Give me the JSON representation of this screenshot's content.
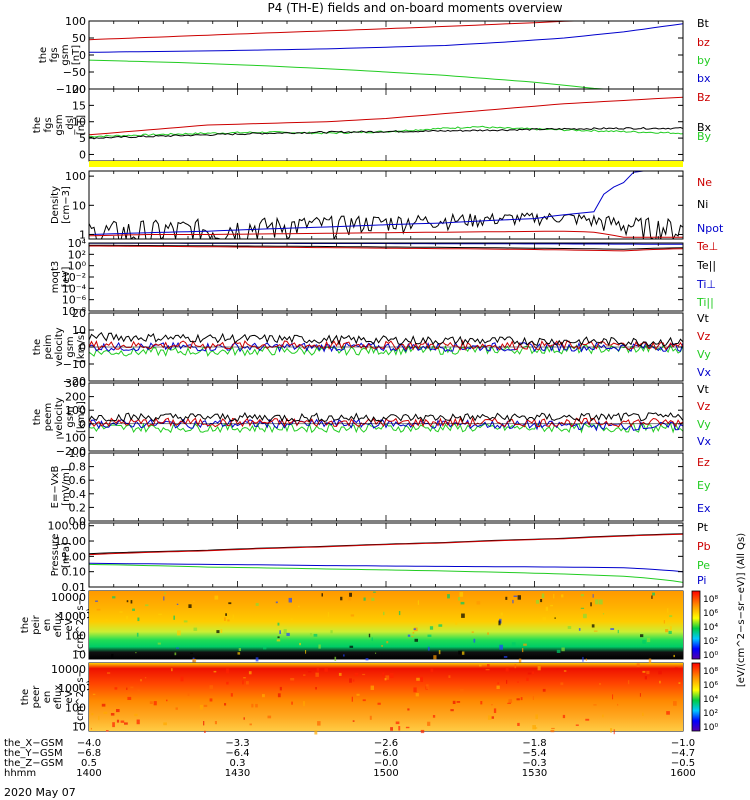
{
  "title": "P4 (TH-E) fields and on-board moments overview",
  "chart_data": [
    {
      "type": "line",
      "ylabel": [
        "the",
        "fgs",
        "gsm",
        "[nT]"
      ],
      "ylim": [
        -100,
        100
      ],
      "yticks": [
        "100",
        "50",
        "0",
        "−50",
        "−100"
      ],
      "tickvals": [
        100,
        50,
        0,
        -50,
        -100
      ],
      "legend": [
        {
          "label": "Bt",
          "color": "#000000"
        },
        {
          "label": "bz",
          "color": "#cc0000"
        },
        {
          "label": "by",
          "color": "#22cc22"
        },
        {
          "label": "bx",
          "color": "#0000cc"
        }
      ],
      "series": [
        {
          "name": "bz",
          "color": "#cc0000",
          "x": [
            0,
            15,
            30,
            45,
            60,
            75,
            81,
            100
          ],
          "y": [
            45,
            55,
            65,
            74,
            84,
            95,
            100,
            100
          ]
        },
        {
          "name": "bx",
          "color": "#0000cc",
          "x": [
            0,
            20,
            40,
            60,
            70,
            80,
            90,
            100
          ],
          "y": [
            8,
            12,
            18,
            28,
            38,
            50,
            68,
            92
          ]
        },
        {
          "name": "by",
          "color": "#22cc22",
          "x": [
            0,
            15,
            30,
            45,
            60,
            75,
            86,
            100
          ],
          "y": [
            -15,
            -22,
            -32,
            -45,
            -60,
            -80,
            -100,
            -100
          ]
        }
      ]
    },
    {
      "type": "line",
      "ylabel": [
        "the",
        "fgs",
        "gsm",
        "_dsl",
        "[nT]"
      ],
      "ylim": [
        -2,
        20
      ],
      "yticks": [
        "20",
        "15",
        "10",
        "5",
        "0"
      ],
      "tickvals": [
        20,
        15,
        10,
        5,
        0
      ],
      "legend": [
        {
          "label": "Bz",
          "color": "#cc0000"
        },
        {
          "label": "Bx",
          "color": "#000000"
        },
        {
          "label": "By",
          "color": "#22cc22"
        }
      ],
      "series": [
        {
          "name": "Bz",
          "color": "#cc0000",
          "x": [
            0,
            10,
            20,
            30,
            40,
            50,
            60,
            70,
            80,
            90,
            100
          ],
          "y": [
            6,
            7.5,
            9,
            9.5,
            10,
            11,
            12.5,
            14,
            15.5,
            16.5,
            17.5
          ]
        },
        {
          "name": "By",
          "color": "#22cc22",
          "x": [
            0,
            10,
            20,
            30,
            40,
            50,
            60,
            65,
            70,
            80,
            90,
            100
          ],
          "y": [
            5.5,
            6,
            6.5,
            6.8,
            6.5,
            7,
            8,
            8.5,
            8,
            7.5,
            7,
            6.5
          ]
        },
        {
          "name": "Bx",
          "color": "#000000",
          "x": [
            0,
            10,
            20,
            30,
            40,
            50,
            60,
            70,
            80,
            90,
            100
          ],
          "y": [
            5,
            5.5,
            6,
            6.5,
            6.8,
            7,
            7.2,
            7.5,
            7.8,
            8,
            8
          ]
        }
      ],
      "noisy": [
        "Bx",
        "By"
      ]
    },
    {
      "type": "line",
      "ylabel": [
        "Density",
        "[cm−3]"
      ],
      "yscale": "log",
      "ylim": [
        0.7,
        150
      ],
      "yticks": [
        "100",
        "10",
        "1"
      ],
      "tickvals": [
        100,
        10,
        1
      ],
      "legend": [
        {
          "label": "Ne",
          "color": "#cc0000"
        },
        {
          "label": "Ni",
          "color": "#000000"
        },
        {
          "label": "Npot",
          "color": "#0000cc"
        }
      ],
      "series": [
        {
          "name": "Ni",
          "color": "#000000",
          "x": [
            0,
            10,
            20,
            30,
            40,
            50,
            60,
            70,
            80,
            90,
            100
          ],
          "y": [
            1,
            1.3,
            1.6,
            2,
            2.4,
            2.8,
            3.2,
            3.6,
            4,
            2.2,
            1.6
          ]
        },
        {
          "name": "Ne",
          "color": "#cc0000",
          "x": [
            0,
            10,
            20,
            30,
            40,
            50,
            60,
            70,
            80,
            85,
            90,
            100
          ],
          "y": [
            0.9,
            1,
            1,
            1.05,
            1.1,
            1.15,
            1.2,
            1.25,
            1.3,
            1.2,
            0.8,
            0.8
          ]
        },
        {
          "name": "Npot",
          "color": "#0000cc",
          "x": [
            0,
            20,
            40,
            60,
            75,
            85,
            90,
            92
          ],
          "y": [
            1,
            1.3,
            1.8,
            2.5,
            3.5,
            6,
            60,
            150
          ]
        }
      ],
      "noisy": [
        "Ni"
      ]
    },
    {
      "type": "line",
      "ylabel": [
        "moqt3",
        "[eV]"
      ],
      "yscale": "log",
      "ylim": [
        1e-08,
        10000
      ],
      "yticks": [
        "10⁴",
        "10²",
        "10⁰",
        "10⁻²",
        "10⁻⁴",
        "10⁻⁶",
        "10⁻⁸"
      ],
      "tickvals": [
        10000,
        100,
        1,
        0.01,
        0.0001,
        1e-06,
        1e-08
      ],
      "legend": [
        {
          "label": "Te⊥",
          "color": "#cc0000"
        },
        {
          "label": "Te||",
          "color": "#000000"
        },
        {
          "label": "Ti⊥",
          "color": "#0000cc"
        },
        {
          "label": "Ti||",
          "color": "#22cc22"
        }
      ],
      "series": [
        {
          "name": "Ti⊥",
          "color": "#0000cc",
          "x": [
            0,
            25,
            50,
            75,
            100
          ],
          "y": [
            9000,
            8500,
            8000,
            7000,
            6000
          ]
        },
        {
          "name": "Te||",
          "color": "#000000",
          "x": [
            0,
            25,
            50,
            75,
            90,
            100
          ],
          "y": [
            4000,
            3000,
            2000,
            1200,
            800,
            1500
          ]
        },
        {
          "name": "Te⊥",
          "color": "#cc0000",
          "x": [
            0,
            25,
            50,
            75,
            90,
            100
          ],
          "y": [
            3000,
            2000,
            1200,
            700,
            400,
            1000
          ]
        }
      ]
    },
    {
      "type": "line",
      "ylabel": [
        "the",
        "peim",
        "velocity",
        "gsm",
        "[km/s]"
      ],
      "ylim": [
        -20,
        20
      ],
      "yticks": [
        "20",
        "10",
        "0",
        "−10",
        "−20"
      ],
      "tickvals": [
        20,
        10,
        0,
        -10,
        -20
      ],
      "legend": [
        {
          "label": "Vt",
          "color": "#000000"
        },
        {
          "label": "Vz",
          "color": "#cc0000"
        },
        {
          "label": "Vy",
          "color": "#22cc22"
        },
        {
          "label": "Vx",
          "color": "#0000cc"
        }
      ],
      "series": [
        {
          "name": "Vy",
          "color": "#22cc22",
          "x": [
            0,
            50,
            100
          ],
          "y": [
            -3,
            -2,
            -1
          ]
        },
        {
          "name": "Vx",
          "color": "#0000cc",
          "x": [
            0,
            50,
            100
          ],
          "y": [
            0,
            0,
            0
          ]
        },
        {
          "name": "Vz",
          "color": "#cc0000",
          "x": [
            0,
            50,
            100
          ],
          "y": [
            1,
            1,
            1
          ]
        },
        {
          "name": "Vt",
          "color": "#000000",
          "x": [
            0,
            50,
            100
          ],
          "y": [
            6,
            4,
            3
          ]
        }
      ],
      "noisy": [
        "Vy",
        "Vx",
        "Vz",
        "Vt"
      ]
    },
    {
      "type": "line",
      "ylabel": [
        "the",
        "peem",
        "velocity",
        "gsm",
        "[km/s]"
      ],
      "ylim": [
        -200,
        300
      ],
      "yticks": [
        "300",
        "200",
        "100",
        "0",
        "−100",
        "−200"
      ],
      "tickvals": [
        300,
        200,
        100,
        0,
        -100,
        -200
      ],
      "legend": [
        {
          "label": "Vt",
          "color": "#000000"
        },
        {
          "label": "Vz",
          "color": "#cc0000"
        },
        {
          "label": "Vy",
          "color": "#22cc22"
        },
        {
          "label": "Vx",
          "color": "#0000cc"
        }
      ],
      "series": [
        {
          "name": "Vy",
          "color": "#22cc22",
          "x": [
            0,
            50,
            100
          ],
          "y": [
            -30,
            -30,
            -30
          ]
        },
        {
          "name": "Vx",
          "color": "#0000cc",
          "x": [
            0,
            50,
            100
          ],
          "y": [
            0,
            0,
            -20
          ]
        },
        {
          "name": "Vz",
          "color": "#cc0000",
          "x": [
            0,
            50,
            100
          ],
          "y": [
            10,
            10,
            10
          ]
        },
        {
          "name": "Vt",
          "color": "#000000",
          "x": [
            0,
            50,
            100
          ],
          "y": [
            50,
            45,
            50
          ]
        }
      ],
      "noisy": [
        "Vy",
        "Vx",
        "Vz",
        "Vt"
      ]
    },
    {
      "type": "line",
      "ylabel": [
        "E=−VxB",
        "[mV/m]"
      ],
      "ylim": [
        0,
        1
      ],
      "yticks": [
        "1.0",
        "0.8",
        "0.6",
        "0.4",
        "0.2",
        "0.0"
      ],
      "tickvals": [
        1,
        0.8,
        0.6,
        0.4,
        0.2,
        0
      ],
      "legend": [
        {
          "label": "Ez",
          "color": "#cc0000"
        },
        {
          "label": "Ey",
          "color": "#22cc22"
        },
        {
          "label": "Ex",
          "color": "#0000cc"
        }
      ],
      "series": []
    },
    {
      "type": "line",
      "ylabel": [
        "Pressure",
        "[nPa]"
      ],
      "yscale": "log",
      "ylim": [
        0.01,
        150
      ],
      "yticks": [
        "100.00",
        "10.00",
        "1.00",
        "0.10",
        "0.01"
      ],
      "tickvals": [
        100,
        10,
        1,
        0.1,
        0.01
      ],
      "legend": [
        {
          "label": "Pt",
          "color": "#000000"
        },
        {
          "label": "Pb",
          "color": "#cc0000"
        },
        {
          "label": "Pe",
          "color": "#22cc22"
        },
        {
          "label": "Pi",
          "color": "#0000cc"
        }
      ],
      "series": [
        {
          "name": "Pt",
          "color": "#000000",
          "x": [
            0,
            20,
            40,
            60,
            80,
            100
          ],
          "y": [
            1.5,
            2.5,
            4.5,
            8,
            15,
            30
          ]
        },
        {
          "name": "Pb",
          "color": "#cc0000",
          "x": [
            0,
            20,
            40,
            60,
            80,
            100
          ],
          "y": [
            1.3,
            2.3,
            4.2,
            7.5,
            14,
            28
          ]
        },
        {
          "name": "Pi",
          "color": "#0000cc",
          "x": [
            0,
            20,
            40,
            60,
            80,
            90,
            100
          ],
          "y": [
            0.35,
            0.3,
            0.25,
            0.22,
            0.2,
            0.18,
            0.1
          ]
        },
        {
          "name": "Pe",
          "color": "#22cc22",
          "x": [
            0,
            20,
            40,
            60,
            80,
            90,
            100
          ],
          "y": [
            0.3,
            0.2,
            0.15,
            0.11,
            0.07,
            0.05,
            0.02
          ]
        }
      ]
    },
    {
      "type": "heatmap",
      "ylabel": [
        "the",
        "peir",
        "en",
        "eflux",
        "eV",
        "(cm^2−s−",
        "sr−eV)"
      ],
      "yscale": "log",
      "ylim": [
        6,
        20000
      ],
      "yticks": [
        "10000",
        "1000",
        "100",
        "10"
      ],
      "tickvals": [
        10000,
        1000,
        100,
        10
      ],
      "colorbar_ticks": [
        "10⁸",
        "10⁶",
        "10⁴",
        "10²",
        "10⁰"
      ]
    },
    {
      "type": "heatmap",
      "ylabel": [
        "the",
        "peer",
        "en",
        "eflux",
        "eV",
        "(cm^2−s−",
        "sr−eV)"
      ],
      "yscale": "log",
      "ylim": [
        6,
        20000
      ],
      "yticks": [
        "10000",
        "1000",
        "100",
        "10"
      ],
      "tickvals": [
        10000,
        1000,
        100,
        10
      ],
      "colorbar_ticks": [
        "10⁸",
        "10⁶",
        "10⁴",
        "10²",
        "10⁰"
      ]
    }
  ],
  "colorbar_label": "[eV/(cm^2−s−sr−eV)] (All Qs)",
  "xaxis": {
    "ticks": [
      0,
      25,
      50,
      75,
      100
    ],
    "rows": [
      {
        "label": "the_X−GSM",
        "values": [
          "−4.0",
          "−3.3",
          "−2.6",
          "−1.8",
          "−1.0"
        ]
      },
      {
        "label": "the_Y−GSM",
        "values": [
          "−6.8",
          "−6.4",
          "−6.0",
          "−5.4",
          "−4.7"
        ]
      },
      {
        "label": "the_Z−GSM",
        "values": [
          "0.5",
          "0.3",
          "−0.0",
          "−0.3",
          "−0.5"
        ]
      },
      {
        "label": "hhmm",
        "values": [
          "1400",
          "1430",
          "1500",
          "1530",
          "1600"
        ]
      }
    ],
    "date": "2020 May 07"
  }
}
